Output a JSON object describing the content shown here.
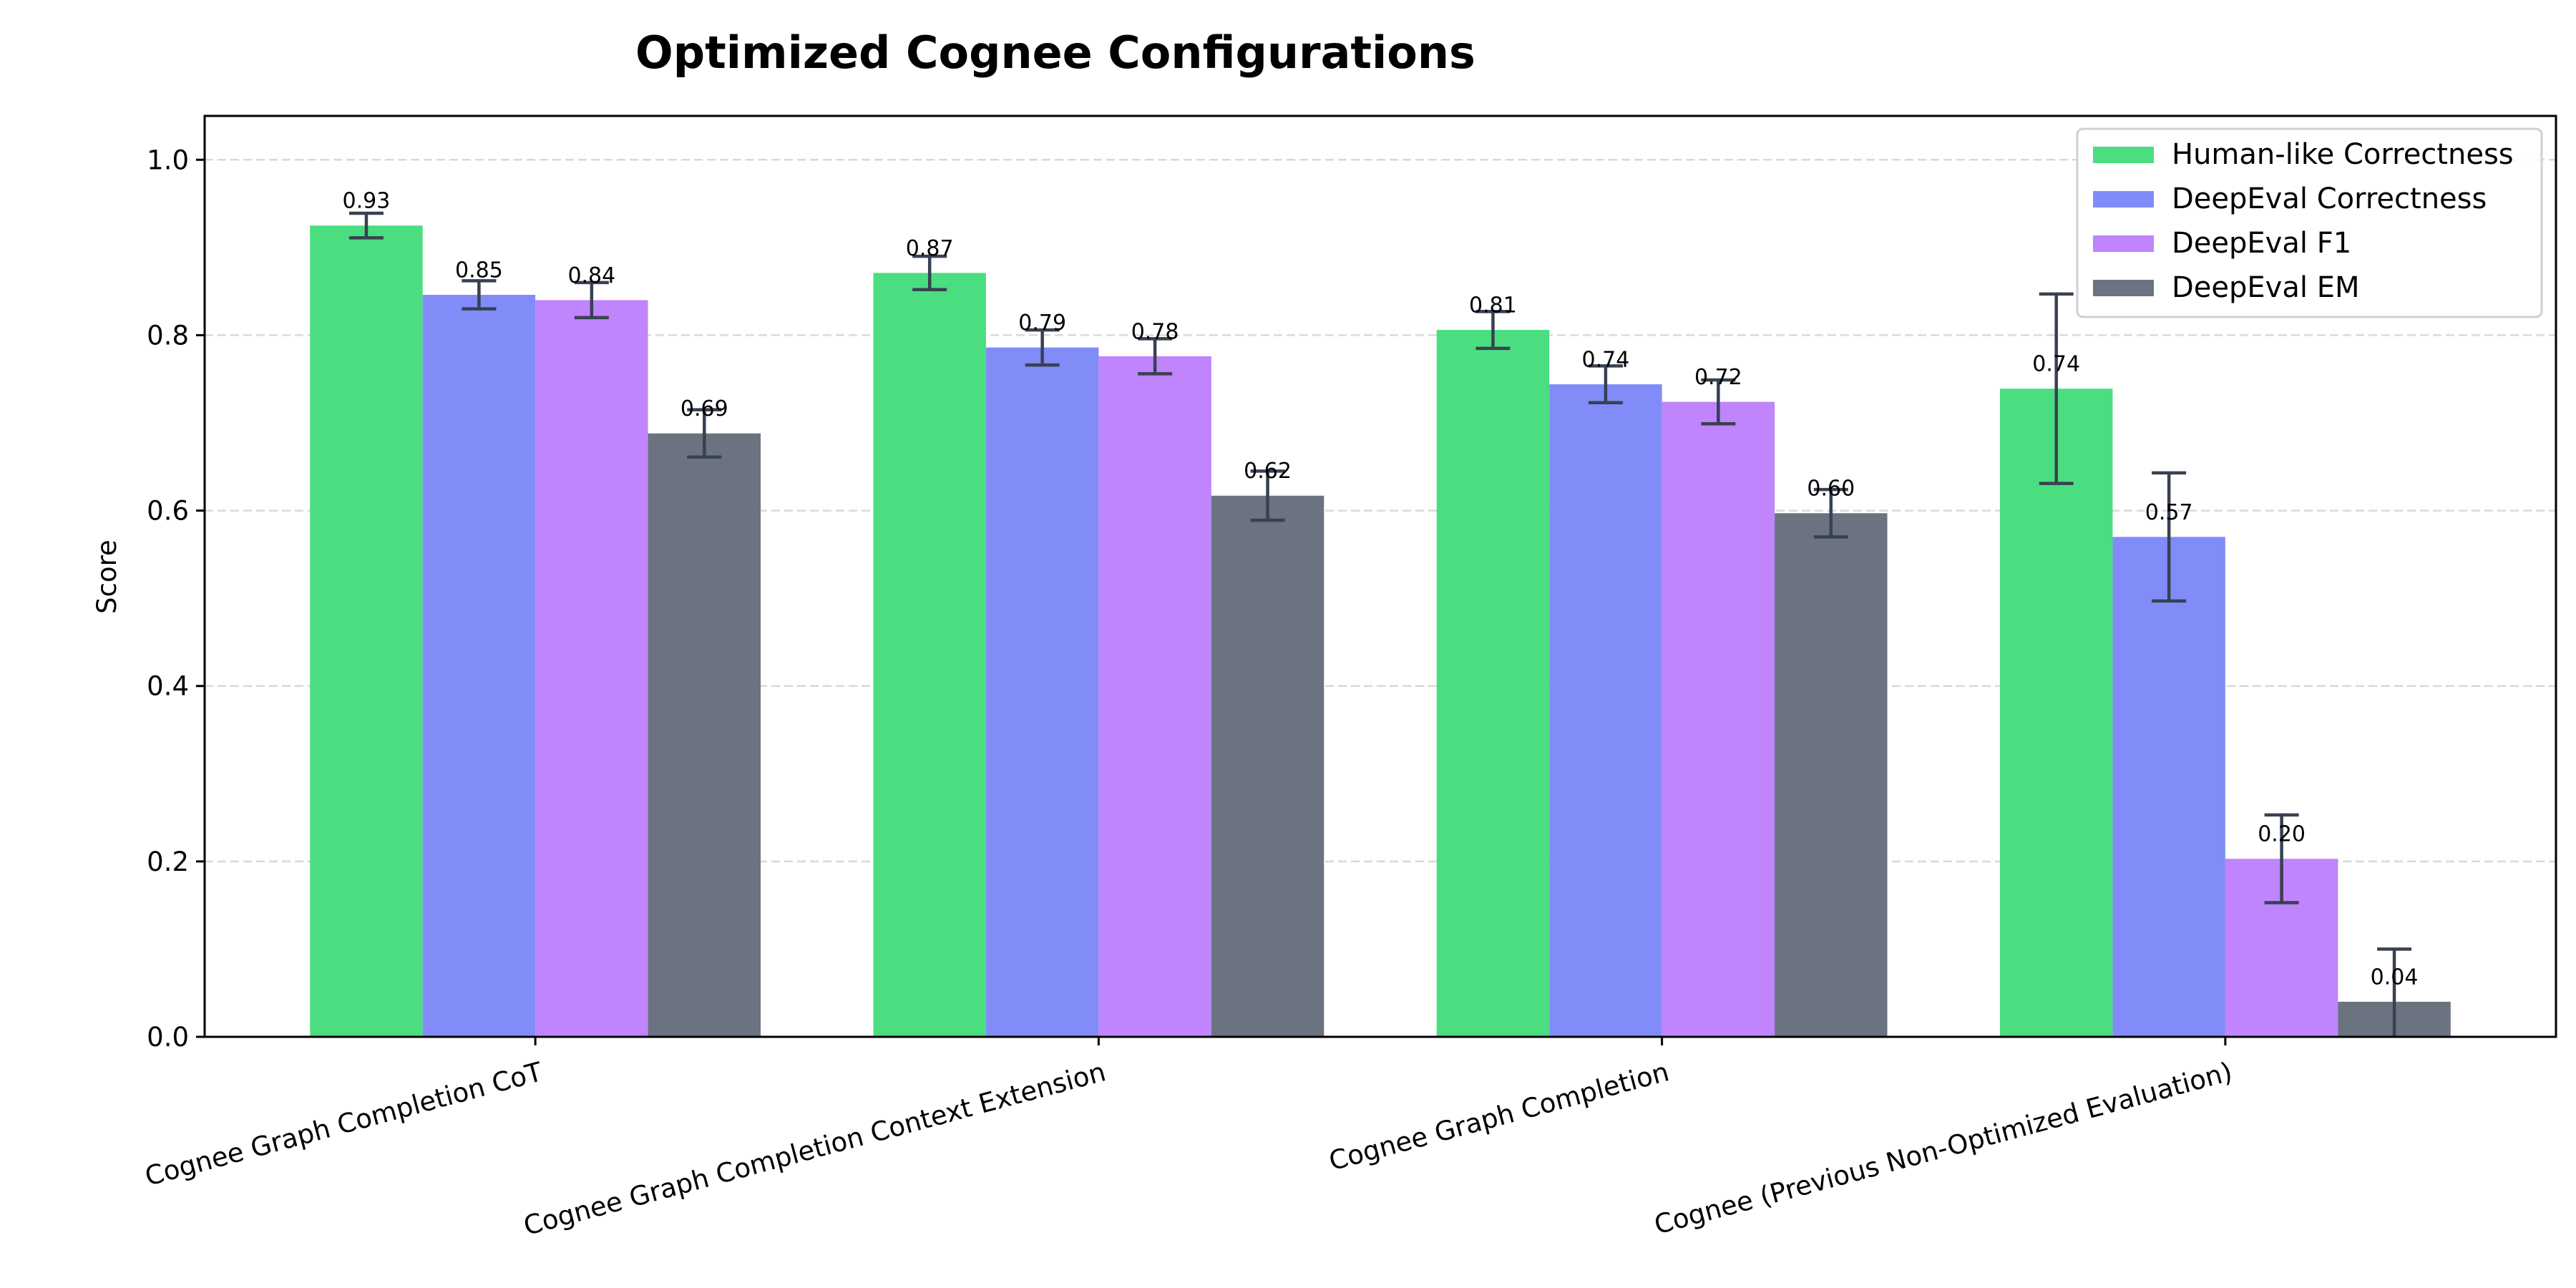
{
  "chart_data": {
    "type": "bar",
    "title": "Optimized Cognee Configurations",
    "xlabel": "",
    "ylabel": "Score",
    "ylim": [
      0,
      1.05
    ],
    "yticks": [
      "0.0",
      "0.2",
      "0.4",
      "0.6",
      "0.8",
      "1.0"
    ],
    "grid": "y-dashed",
    "legend_position": "top-right",
    "categories": [
      "Cognee Graph Completion CoT",
      "Cognee Graph Completion Context Extension",
      "Cognee Graph Completion",
      "Cognee (Previous Non-Optimized Evaluation)"
    ],
    "series": [
      {
        "name": "Human-like Correctness",
        "color": "#4ade80",
        "values": [
          0.925,
          0.871,
          0.806,
          0.739
        ],
        "errors": [
          0.014,
          0.019,
          0.021,
          0.108
        ],
        "labels": [
          "0.93",
          "0.87",
          "0.81",
          "0.74"
        ]
      },
      {
        "name": "DeepEval Correctness",
        "color": "#818cf8",
        "values": [
          0.846,
          0.786,
          0.744,
          0.57
        ],
        "errors": [
          0.016,
          0.02,
          0.021,
          0.073
        ],
        "labels": [
          "0.85",
          "0.79",
          "0.74",
          "0.57"
        ]
      },
      {
        "name": "DeepEval F1",
        "color": "#c084fc",
        "values": [
          0.84,
          0.776,
          0.724,
          0.203
        ],
        "errors": [
          0.02,
          0.02,
          0.025,
          0.05
        ],
        "labels": [
          "0.84",
          "0.78",
          "0.72",
          "0.20"
        ]
      },
      {
        "name": "DeepEval EM",
        "color": "#6b7280",
        "values": [
          0.688,
          0.617,
          0.597,
          0.04
        ],
        "errors": [
          0.027,
          0.028,
          0.027,
          0.06
        ],
        "labels": [
          "0.69",
          "0.62",
          "0.60",
          "0.04"
        ]
      }
    ],
    "error_bar_color": "#374151"
  }
}
